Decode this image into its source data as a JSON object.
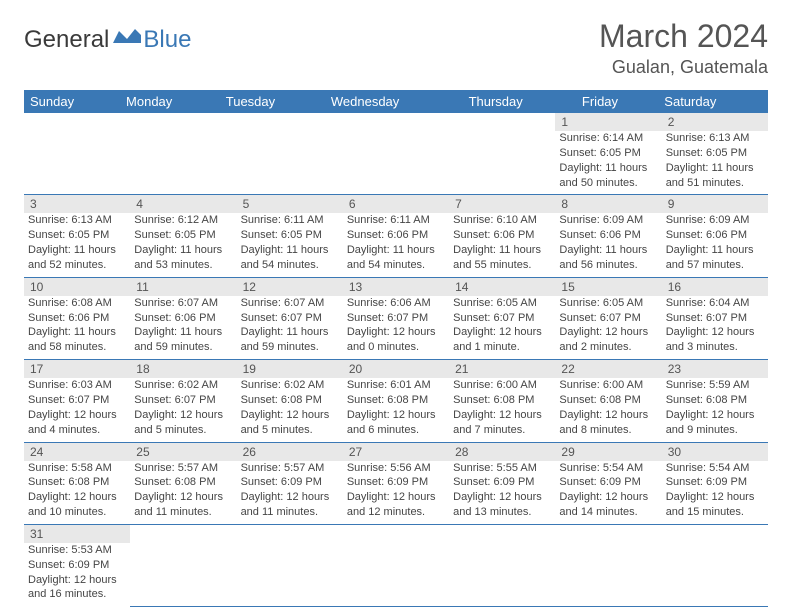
{
  "logo": {
    "general": "General",
    "blue": "Blue"
  },
  "title": "March 2024",
  "location": "Gualan, Guatemala",
  "colors": {
    "header_bg": "#3a78b5",
    "header_text": "#ffffff",
    "daynum_bg": "#e8e8e8",
    "text": "#454545",
    "border": "#3a78b5"
  },
  "daynames": [
    "Sunday",
    "Monday",
    "Tuesday",
    "Wednesday",
    "Thursday",
    "Friday",
    "Saturday"
  ],
  "weeks": [
    [
      null,
      null,
      null,
      null,
      null,
      {
        "n": "1",
        "sr": "Sunrise: 6:14 AM",
        "ss": "Sunset: 6:05 PM",
        "d1": "Daylight: 11 hours",
        "d2": "and 50 minutes."
      },
      {
        "n": "2",
        "sr": "Sunrise: 6:13 AM",
        "ss": "Sunset: 6:05 PM",
        "d1": "Daylight: 11 hours",
        "d2": "and 51 minutes."
      }
    ],
    [
      {
        "n": "3",
        "sr": "Sunrise: 6:13 AM",
        "ss": "Sunset: 6:05 PM",
        "d1": "Daylight: 11 hours",
        "d2": "and 52 minutes."
      },
      {
        "n": "4",
        "sr": "Sunrise: 6:12 AM",
        "ss": "Sunset: 6:05 PM",
        "d1": "Daylight: 11 hours",
        "d2": "and 53 minutes."
      },
      {
        "n": "5",
        "sr": "Sunrise: 6:11 AM",
        "ss": "Sunset: 6:05 PM",
        "d1": "Daylight: 11 hours",
        "d2": "and 54 minutes."
      },
      {
        "n": "6",
        "sr": "Sunrise: 6:11 AM",
        "ss": "Sunset: 6:06 PM",
        "d1": "Daylight: 11 hours",
        "d2": "and 54 minutes."
      },
      {
        "n": "7",
        "sr": "Sunrise: 6:10 AM",
        "ss": "Sunset: 6:06 PM",
        "d1": "Daylight: 11 hours",
        "d2": "and 55 minutes."
      },
      {
        "n": "8",
        "sr": "Sunrise: 6:09 AM",
        "ss": "Sunset: 6:06 PM",
        "d1": "Daylight: 11 hours",
        "d2": "and 56 minutes."
      },
      {
        "n": "9",
        "sr": "Sunrise: 6:09 AM",
        "ss": "Sunset: 6:06 PM",
        "d1": "Daylight: 11 hours",
        "d2": "and 57 minutes."
      }
    ],
    [
      {
        "n": "10",
        "sr": "Sunrise: 6:08 AM",
        "ss": "Sunset: 6:06 PM",
        "d1": "Daylight: 11 hours",
        "d2": "and 58 minutes."
      },
      {
        "n": "11",
        "sr": "Sunrise: 6:07 AM",
        "ss": "Sunset: 6:06 PM",
        "d1": "Daylight: 11 hours",
        "d2": "and 59 minutes."
      },
      {
        "n": "12",
        "sr": "Sunrise: 6:07 AM",
        "ss": "Sunset: 6:07 PM",
        "d1": "Daylight: 11 hours",
        "d2": "and 59 minutes."
      },
      {
        "n": "13",
        "sr": "Sunrise: 6:06 AM",
        "ss": "Sunset: 6:07 PM",
        "d1": "Daylight: 12 hours",
        "d2": "and 0 minutes."
      },
      {
        "n": "14",
        "sr": "Sunrise: 6:05 AM",
        "ss": "Sunset: 6:07 PM",
        "d1": "Daylight: 12 hours",
        "d2": "and 1 minute."
      },
      {
        "n": "15",
        "sr": "Sunrise: 6:05 AM",
        "ss": "Sunset: 6:07 PM",
        "d1": "Daylight: 12 hours",
        "d2": "and 2 minutes."
      },
      {
        "n": "16",
        "sr": "Sunrise: 6:04 AM",
        "ss": "Sunset: 6:07 PM",
        "d1": "Daylight: 12 hours",
        "d2": "and 3 minutes."
      }
    ],
    [
      {
        "n": "17",
        "sr": "Sunrise: 6:03 AM",
        "ss": "Sunset: 6:07 PM",
        "d1": "Daylight: 12 hours",
        "d2": "and 4 minutes."
      },
      {
        "n": "18",
        "sr": "Sunrise: 6:02 AM",
        "ss": "Sunset: 6:07 PM",
        "d1": "Daylight: 12 hours",
        "d2": "and 5 minutes."
      },
      {
        "n": "19",
        "sr": "Sunrise: 6:02 AM",
        "ss": "Sunset: 6:08 PM",
        "d1": "Daylight: 12 hours",
        "d2": "and 5 minutes."
      },
      {
        "n": "20",
        "sr": "Sunrise: 6:01 AM",
        "ss": "Sunset: 6:08 PM",
        "d1": "Daylight: 12 hours",
        "d2": "and 6 minutes."
      },
      {
        "n": "21",
        "sr": "Sunrise: 6:00 AM",
        "ss": "Sunset: 6:08 PM",
        "d1": "Daylight: 12 hours",
        "d2": "and 7 minutes."
      },
      {
        "n": "22",
        "sr": "Sunrise: 6:00 AM",
        "ss": "Sunset: 6:08 PM",
        "d1": "Daylight: 12 hours",
        "d2": "and 8 minutes."
      },
      {
        "n": "23",
        "sr": "Sunrise: 5:59 AM",
        "ss": "Sunset: 6:08 PM",
        "d1": "Daylight: 12 hours",
        "d2": "and 9 minutes."
      }
    ],
    [
      {
        "n": "24",
        "sr": "Sunrise: 5:58 AM",
        "ss": "Sunset: 6:08 PM",
        "d1": "Daylight: 12 hours",
        "d2": "and 10 minutes."
      },
      {
        "n": "25",
        "sr": "Sunrise: 5:57 AM",
        "ss": "Sunset: 6:08 PM",
        "d1": "Daylight: 12 hours",
        "d2": "and 11 minutes."
      },
      {
        "n": "26",
        "sr": "Sunrise: 5:57 AM",
        "ss": "Sunset: 6:09 PM",
        "d1": "Daylight: 12 hours",
        "d2": "and 11 minutes."
      },
      {
        "n": "27",
        "sr": "Sunrise: 5:56 AM",
        "ss": "Sunset: 6:09 PM",
        "d1": "Daylight: 12 hours",
        "d2": "and 12 minutes."
      },
      {
        "n": "28",
        "sr": "Sunrise: 5:55 AM",
        "ss": "Sunset: 6:09 PM",
        "d1": "Daylight: 12 hours",
        "d2": "and 13 minutes."
      },
      {
        "n": "29",
        "sr": "Sunrise: 5:54 AM",
        "ss": "Sunset: 6:09 PM",
        "d1": "Daylight: 12 hours",
        "d2": "and 14 minutes."
      },
      {
        "n": "30",
        "sr": "Sunrise: 5:54 AM",
        "ss": "Sunset: 6:09 PM",
        "d1": "Daylight: 12 hours",
        "d2": "and 15 minutes."
      }
    ],
    [
      {
        "n": "31",
        "sr": "Sunrise: 5:53 AM",
        "ss": "Sunset: 6:09 PM",
        "d1": "Daylight: 12 hours",
        "d2": "and 16 minutes."
      },
      null,
      null,
      null,
      null,
      null,
      null
    ]
  ]
}
